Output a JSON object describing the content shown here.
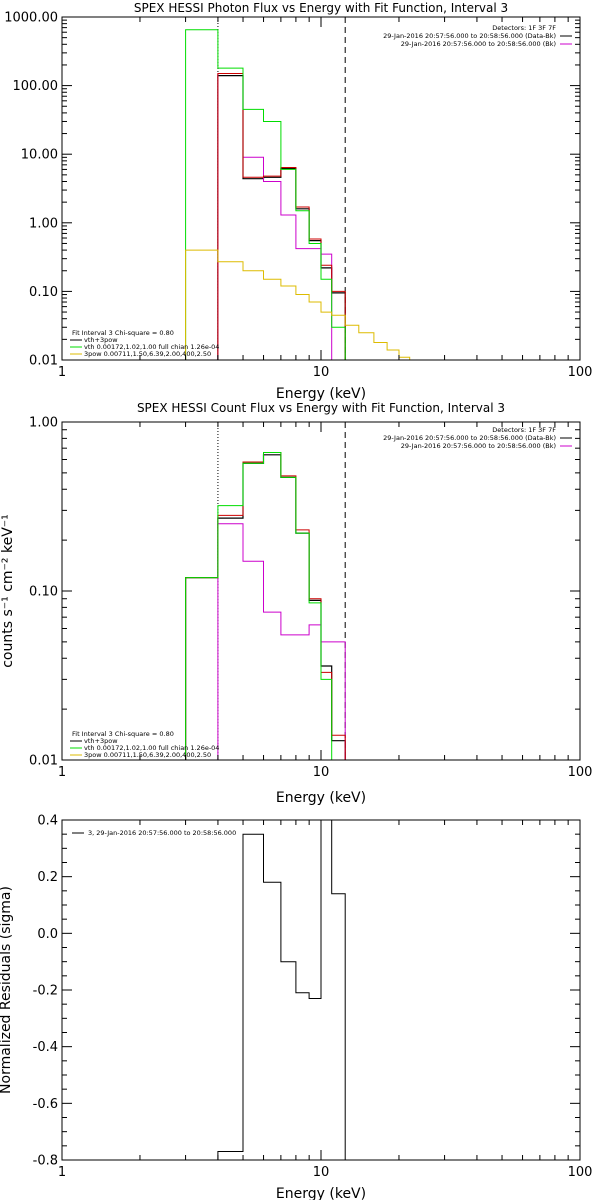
{
  "chart_data": [
    {
      "type": "line",
      "title": "SPEX HESSI Photon Flux vs Energy with Fit Function, Interval 3",
      "xlabel": "Energy (keV)",
      "ylabel": "",
      "x_scale": "log",
      "y_scale": "log",
      "xlim": [
        1,
        100
      ],
      "ylim": [
        0.01,
        1000
      ],
      "x_ticks": [
        "1",
        "10",
        "100"
      ],
      "y_ticks": [
        "0.01",
        "0.10",
        "1.00",
        "10.00",
        "100.00",
        "1000.00"
      ],
      "header_lines": [
        "Detectors: 1F 3F 7F",
        "29-Jan-2016 20:57:56.000 to 20:58:56.000 (Data-Bk)",
        "29-Jan-2016 20:57:56.000 to 20:58:56.000 (Bk)"
      ],
      "fit_lines": [
        {
          "text": "Fit Interval 3   Chi-square = 0.80",
          "color": "#000000"
        },
        {
          "text": "vth+3pow",
          "color": "#000000"
        },
        {
          "text": "vth 0.00172,1.02,1.00  full chian 1.26e-04",
          "color": "#00dd00"
        },
        {
          "text": "3pow 0.00711,1.50,6.39,2.00,400,2.50",
          "color": "#ddbb00"
        }
      ],
      "vlines": [
        {
          "x": 4.0,
          "style": "dotted"
        },
        {
          "x": 12.4,
          "style": "dashed"
        }
      ],
      "edges": [
        3.0,
        4.0,
        5.0,
        6.0,
        7.0,
        8.0,
        9.0,
        10.0,
        11.0,
        12.4,
        14.0,
        16.0,
        18.0,
        20.0,
        22.0,
        24.0,
        26.0
      ],
      "series": [
        {
          "name": "Data-Bk",
          "color": "#000000",
          "width": 1.2,
          "start": 1,
          "values": [
            140,
            4.4,
            4.6,
            6.2,
            1.6,
            0.55,
            0.22,
            0.095
          ]
        },
        {
          "name": "Bk",
          "color": "#cc00cc",
          "width": 1,
          "values": [
            null,
            150,
            9.0,
            4.0,
            1.3,
            0.42,
            0.42,
            0.35
          ]
        },
        {
          "name": "vth+3pow",
          "color": "#cc0000",
          "width": 1,
          "start": 1,
          "values": [
            150,
            4.6,
            4.8,
            6.4,
            1.7,
            0.58,
            0.24,
            0.1
          ]
        },
        {
          "name": "vth",
          "color": "#00dd00",
          "width": 1,
          "values": [
            650,
            180,
            45,
            30,
            6.0,
            1.5,
            0.5,
            0.15,
            0.03,
            0.005
          ]
        },
        {
          "name": "3pow",
          "color": "#ddbb00",
          "width": 1,
          "values": [
            0.4,
            0.27,
            0.2,
            0.15,
            0.12,
            0.09,
            0.07,
            0.05,
            0.045,
            0.032,
            0.025,
            0.018,
            0.014,
            0.011,
            0.01,
            0.008
          ]
        }
      ]
    },
    {
      "type": "line",
      "title": "SPEX HESSI Count Flux vs Energy with Fit Function, Interval 3",
      "xlabel": "Energy (keV)",
      "ylabel": "counts s⁻¹ cm⁻² keV⁻¹",
      "x_scale": "log",
      "y_scale": "log",
      "xlim": [
        1,
        100
      ],
      "ylim": [
        0.01,
        1.0
      ],
      "x_ticks": [
        "1",
        "10",
        "100"
      ],
      "y_ticks": [
        "0.01",
        "0.10",
        "1.00"
      ],
      "header_lines": [
        "Detectors: 1F 3F 7F",
        "29-Jan-2016 20:57:56.000 to 20:58:56.000 (Data-Bk)",
        "29-Jan-2016 20:57:56.000 to 20:58:56.000 (Bk)"
      ],
      "fit_lines": [
        {
          "text": "Fit Interval 3   Chi-square = 0.80",
          "color": "#000000"
        },
        {
          "text": "vth+3pow",
          "color": "#000000"
        },
        {
          "text": "vth 0.00172,1.02,1.00  full chian 1.26e-04",
          "color": "#00dd00"
        },
        {
          "text": "3pow 0.00711,1.50,6.39,2.00,400,2.50",
          "color": "#ddbb00"
        }
      ],
      "vlines": [
        {
          "x": 4.0,
          "style": "dotted"
        },
        {
          "x": 12.4,
          "style": "dashed"
        }
      ],
      "edges": [
        3.0,
        4.0,
        5.0,
        6.0,
        7.0,
        8.0,
        9.0,
        10.0,
        11.0,
        12.4
      ],
      "series": [
        {
          "name": "Data-Bk",
          "color": "#000000",
          "width": 1.2,
          "values": [
            0.12,
            0.27,
            0.57,
            0.64,
            0.47,
            0.22,
            0.088,
            0.036,
            0.013
          ]
        },
        {
          "name": "Bk",
          "color": "#cc00cc",
          "width": 1,
          "start": 1,
          "values": [
            0.25,
            0.15,
            0.075,
            0.055,
            0.055,
            0.063,
            0.05,
            0.05
          ]
        },
        {
          "name": "vth+3pow",
          "color": "#cc0000",
          "width": 1,
          "values": [
            0.12,
            0.28,
            0.58,
            0.66,
            0.48,
            0.23,
            0.09,
            0.033,
            0.014
          ]
        },
        {
          "name": "vth",
          "color": "#00dd00",
          "width": 1,
          "values": [
            0.12,
            0.32,
            0.57,
            0.66,
            0.47,
            0.22,
            0.085,
            0.03,
            0.009
          ]
        }
      ]
    },
    {
      "type": "line",
      "title": "",
      "xlabel": "Energy (keV)",
      "ylabel": "Normalized Residuals (sigma)",
      "x_scale": "log",
      "y_scale": "linear",
      "xlim": [
        1,
        100
      ],
      "ylim": [
        -0.8,
        0.4
      ],
      "x_ticks": [
        "1",
        "10",
        "100"
      ],
      "y_ticks": [
        "-0.8",
        "-0.6",
        "-0.4",
        "-0.2",
        "0.0",
        "0.2",
        "0.4"
      ],
      "legend": "3, 29-Jan-2016 20:57:56.000 to 20:58:56.000",
      "edges": [
        4.0,
        5.0,
        6.0,
        7.0,
        8.0,
        9.0,
        10.0,
        11.0,
        12.4
      ],
      "series": [
        {
          "name": "3, 29-Jan-2016 20:57:56.000 to 20:58:56.000",
          "color": "#000000",
          "width": 1,
          "values": [
            -0.77,
            0.35,
            0.18,
            -0.1,
            -0.21,
            -0.23,
            0.41,
            0.14
          ]
        }
      ]
    }
  ]
}
